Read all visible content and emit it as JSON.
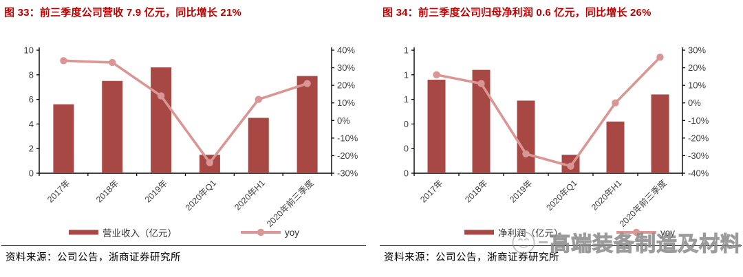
{
  "colors": {
    "bar": "#A84844",
    "line": "#DA9694",
    "title_red": "#C00000",
    "axis_text": "#404040",
    "axis_line": "#000000"
  },
  "watermark": {
    "icon": "smiley-face-icon",
    "text": "高端装备制造及材料"
  },
  "charts": [
    {
      "title": "图 33：前三季度公司营收 7.9 亿元，同比增长 21%",
      "source_label": "资料来源：",
      "source_text": "公司公告，浙商证券研究所",
      "chart_data": {
        "type": "bar",
        "combo": "bar+line",
        "categories": [
          "2017年",
          "2018年",
          "2019年",
          "2020年Q1",
          "2020年H1",
          "2020年前三季度"
        ],
        "series": [
          {
            "name": "营业收入（亿元）",
            "type": "bar",
            "axis": "left",
            "values": [
              5.6,
              7.5,
              8.6,
              1.5,
              4.5,
              7.9
            ]
          },
          {
            "name": "yoy",
            "type": "line",
            "axis": "right",
            "values_pct": [
              34,
              33,
              14,
              -24,
              12,
              21
            ]
          }
        ],
        "left_axis": {
          "min": 0,
          "max": 10,
          "tick_labels": [
            "0",
            "2",
            "4",
            "6",
            "8",
            "10"
          ]
        },
        "right_axis": {
          "min": -30,
          "max": 40,
          "tick_labels": [
            "-30%",
            "-20%",
            "-10%",
            "0%",
            "10%",
            "20%",
            "30%",
            "40%"
          ]
        },
        "grid": "off",
        "legend_position": "bottom"
      }
    },
    {
      "title": "图 34：前三季度公司归母净利润 0.6 亿元，同比增长 26%",
      "source_label": "资料来源：",
      "source_text": "公司公告，浙商证券研究所",
      "chart_data": {
        "type": "bar",
        "combo": "bar+line",
        "categories": [
          "2017年",
          "2018年",
          "2019年",
          "2020年Q1",
          "2020年H1",
          "2020年前三季度"
        ],
        "series": [
          {
            "name": "净利润（亿元）",
            "type": "bar",
            "axis": "left",
            "values": [
              0.76,
              0.84,
              0.59,
              0.15,
              0.42,
              0.64
            ]
          },
          {
            "name": "yoy",
            "type": "line",
            "axis": "right",
            "values_pct": [
              16,
              11,
              -29,
              -36,
              0,
              26
            ]
          }
        ],
        "left_axis": {
          "min": 0,
          "max": 1.0,
          "tick_labels": [
            "0",
            "0",
            "0",
            "1",
            "1",
            "1"
          ]
        },
        "right_axis": {
          "min": -40,
          "max": 30,
          "tick_labels": [
            "-40%",
            "-30%",
            "-20%",
            "-10%",
            "0%",
            "10%",
            "20%",
            "30%"
          ]
        },
        "grid": "off",
        "legend_position": "bottom"
      }
    }
  ]
}
